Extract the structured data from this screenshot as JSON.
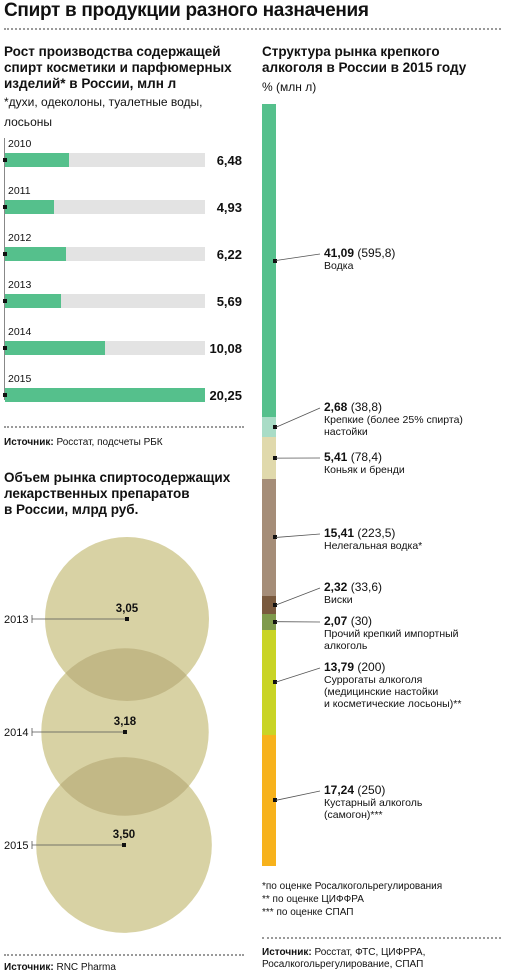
{
  "title": "Спирт в продукции разного назначения",
  "cosmetics": {
    "title_lines": [
      "Рост производства содержащей",
      "спирт косметики и парфюмерных",
      "изделий* в России, млн л"
    ],
    "note_lines": [
      "*духи, одеколоны, туалетные воды,",
      "лосьоны"
    ],
    "source_label": "Источник:",
    "source_text": " Росстат, подсчеты РБК"
  },
  "medicine": {
    "title_lines": [
      "Объем рынка спиртосодержащих",
      "лекарственных препаратов",
      "в России, млрд руб."
    ],
    "source_label": "Источник:",
    "source_text": " RNC Pharma"
  },
  "alcohol": {
    "title_lines": [
      "Структура рынка крепкого",
      "алкоголя в России в 2015 году"
    ],
    "unit": "% (млн л)",
    "footnotes": [
      "*по оценке Росалкогольрегулирования",
      "** по оценке ЦИФФРА",
      "*** по оценке СПАП"
    ],
    "source_label": "Источник:",
    "source_lines": [
      " Росстат, ФТС, ЦИФРРА,",
      "Росалкогольрегулирование, СПАП"
    ]
  },
  "colors": {
    "green": "#55c08c",
    "bar_bg": "#e3e3e3",
    "circle": "#d8d2a4",
    "circle_overlap": "#c2b886"
  },
  "chart_data": [
    {
      "type": "bar",
      "title": "Рост производства содержащей спирт косметики и парфюмерных изделий* в России, млн л",
      "categories": [
        "2010",
        "2011",
        "2012",
        "2013",
        "2014",
        "2015"
      ],
      "values": [
        6.48,
        4.93,
        6.22,
        5.69,
        10.08,
        20.25
      ],
      "value_labels": [
        "6,48",
        "4,93",
        "6,22",
        "5,69",
        "10,08",
        "20,25"
      ],
      "ylim": [
        0,
        20.25
      ],
      "orientation": "horizontal"
    },
    {
      "type": "bubble",
      "title": "Объем рынка спиртосодержащих лекарственных препаратов в России, млрд руб.",
      "categories": [
        "2013",
        "2014",
        "2015"
      ],
      "values": [
        3.05,
        3.18,
        3.5
      ],
      "value_labels": [
        "3,05",
        "3,18",
        "3,50"
      ]
    },
    {
      "type": "bar",
      "title": "Структура рынка крепкого алкоголя в России в 2015 году",
      "ylabel": "% (млн л)",
      "stacked": true,
      "segments": [
        {
          "name": "Водка",
          "percent": 41.09,
          "percent_label": "41,09",
          "volume_label": "(595,8)",
          "color": "#55c08c",
          "label_lines": [
            "Водка"
          ]
        },
        {
          "name": "Крепкие (более 25% спирта) настойки",
          "percent": 2.68,
          "percent_label": "2,68",
          "volume_label": "(38,8)",
          "color": "#a9dcc6",
          "label_lines": [
            "Крепкие (более 25% спирта)",
            "настойки"
          ]
        },
        {
          "name": "Коньяк и бренди",
          "percent": 5.41,
          "percent_label": "5,41",
          "volume_label": "(78,4)",
          "color": "#e0d9ac",
          "label_lines": [
            "Коньяк и бренди"
          ]
        },
        {
          "name": "Нелегальная водка*",
          "percent": 15.41,
          "percent_label": "15,41",
          "volume_label": "(223,5)",
          "color": "#a58d78",
          "label_lines": [
            "Нелегальная водка*"
          ]
        },
        {
          "name": "Виски",
          "percent": 2.32,
          "percent_label": "2,32",
          "volume_label": "(33,6)",
          "color": "#7a5a3e",
          "label_lines": [
            "Виски"
          ]
        },
        {
          "name": "Прочий крепкий импортный алкоголь",
          "percent": 2.07,
          "percent_label": "2,07",
          "volume_label": "(30)",
          "color": "#7f9a4c",
          "label_lines": [
            "Прочий крепкий импортный",
            "алкоголь"
          ]
        },
        {
          "name": "Суррогаты алкоголя (медицинские настойки и косметические лосьоны)**",
          "percent": 13.79,
          "percent_label": "13,79",
          "volume_label": "(200)",
          "color": "#c9d426",
          "label_lines": [
            "Суррогаты алкоголя",
            "(медицинские настойки",
            "и косметические лосьоны)**"
          ]
        },
        {
          "name": "Кустарный алкоголь (самогон)***",
          "percent": 17.24,
          "percent_label": "17,24",
          "volume_label": "(250)",
          "color": "#f7b21c",
          "label_lines": [
            "Кустарный алкоголь",
            "(самогон)***"
          ]
        }
      ]
    }
  ]
}
